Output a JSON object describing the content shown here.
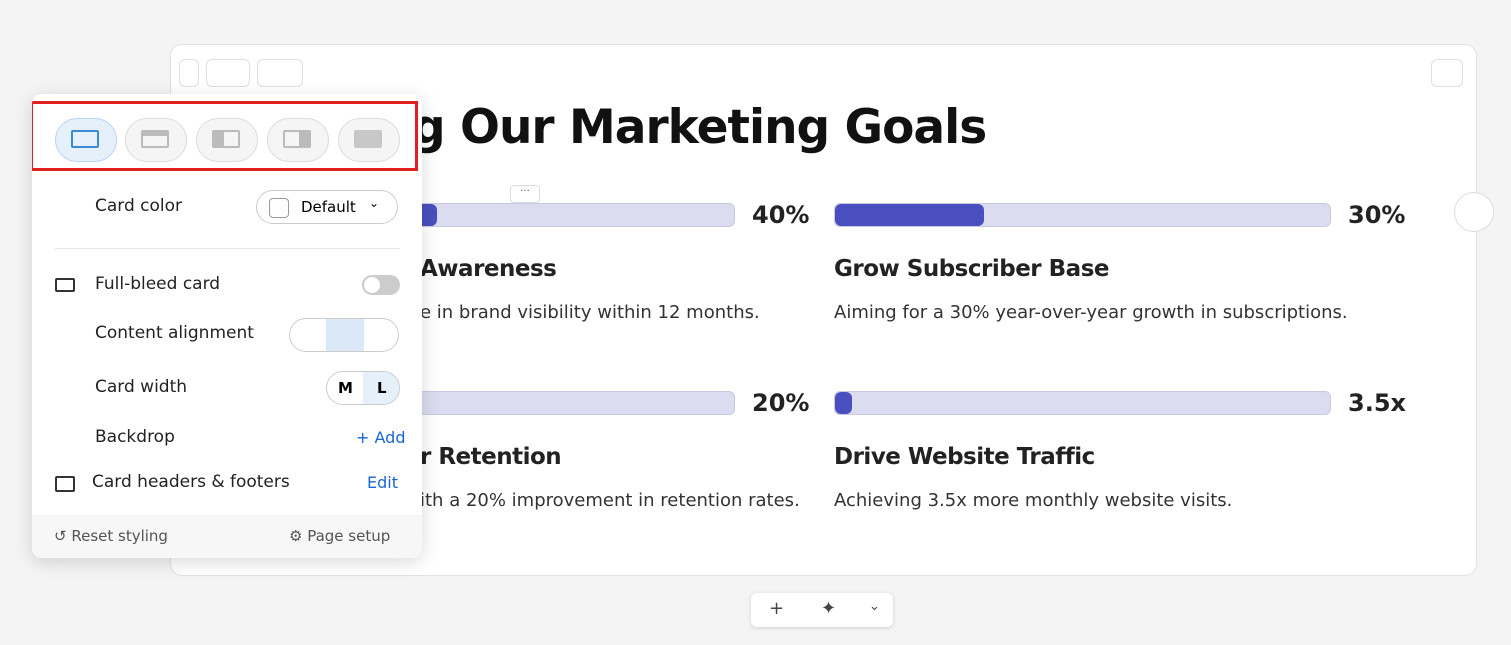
{
  "title": "g Our Marketing Goals",
  "goals": [
    {
      "progress": {
        "value": 40,
        "label": "40%"
      },
      "heading": "Awareness",
      "description": "e in brand visibility within 12 months."
    },
    {
      "progress": {
        "value": 30,
        "label": "30%"
      },
      "heading": "Grow Subscriber Base",
      "description": "Aiming for a 30% year-over-year growth in subscriptions."
    },
    {
      "progress": {
        "value": 20,
        "label": "20%"
      },
      "heading": "r Retention",
      "description": "ith a 20% improvement in retention rates."
    },
    {
      "progress": {
        "value": 3.5,
        "label": "3.5x"
      },
      "heading": "Drive Website Traffic",
      "description": "Achieving 3.5x more monthly website visits."
    }
  ],
  "panel": {
    "card_color": {
      "label": "Card color",
      "value": "Default"
    },
    "full_bleed": "Full-bleed card",
    "content_alignment": "Content alignment",
    "card_width": {
      "label": "Card width",
      "options": [
        "M",
        "L"
      ]
    },
    "backdrop": {
      "label": "Backdrop",
      "action": "+ Add"
    },
    "headers_footers": {
      "label": "Card headers & footers",
      "action": "Edit"
    },
    "footer": {
      "reset": "Reset styling",
      "setup": "Page setup"
    }
  }
}
